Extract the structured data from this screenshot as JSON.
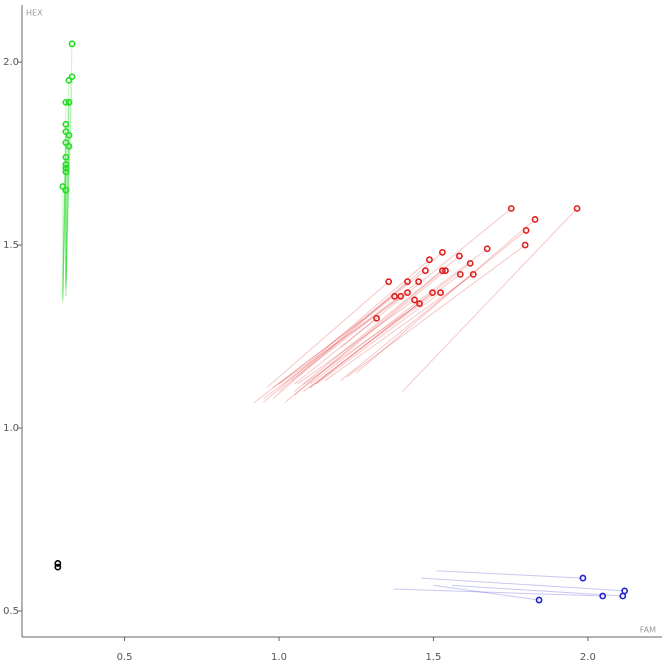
{
  "chart_data": {
    "type": "scatter-trails",
    "x_label": "FAM",
    "y_label": "HEX",
    "xlim": [
      0.168,
      2.24
    ],
    "ylim": [
      0.429,
      2.156
    ],
    "xticks": [
      0.5,
      {
        "value": 1,
        "label": "1.0"
      },
      1.5,
      {
        "value": 2,
        "label": "2.0"
      }
    ],
    "yticks": [
      0.5,
      {
        "value": 1,
        "label": "1.0"
      },
      1.5,
      {
        "value": 2,
        "label": "2.0"
      }
    ],
    "series": [
      {
        "color": "#22dd22",
        "x": [
          0.33,
          0.33,
          0.32,
          0.32,
          0.31,
          0.32,
          0.31,
          0.31,
          0.32,
          0.31,
          0.32,
          0.31,
          0.31,
          0.31,
          0.31,
          0.3,
          0.31
        ],
        "y": [
          2.05,
          1.96,
          1.95,
          1.89,
          1.89,
          1.89,
          1.83,
          1.81,
          1.8,
          1.78,
          1.77,
          1.74,
          1.72,
          1.71,
          1.7,
          1.66,
          1.65
        ],
        "trail_x": [
          0.31,
          0.31,
          0.3,
          0.31,
          0.3,
          0.31,
          0.3,
          0.31,
          0.31,
          0.3,
          0.31,
          0.3,
          0.31,
          0.3,
          0.31,
          0.3,
          0.31
        ],
        "trail_y": [
          1.36,
          1.38,
          1.34,
          1.4,
          1.35,
          1.42,
          1.37,
          1.39,
          1.36,
          1.41,
          1.38,
          1.35,
          1.4,
          1.37,
          1.39,
          1.36,
          1.41
        ]
      },
      {
        "color": "#e02020",
        "x": [
          1.752,
          1.965,
          1.829,
          1.8,
          1.529,
          1.487,
          1.674,
          1.584,
          1.619,
          1.797,
          1.474,
          1.452,
          1.355,
          1.416,
          1.539,
          1.529,
          1.629,
          1.587,
          1.416,
          1.374,
          1.394,
          1.439,
          1.455,
          1.497,
          1.523,
          1.316
        ],
        "y": [
          1.6,
          1.6,
          1.57,
          1.54,
          1.48,
          1.46,
          1.49,
          1.47,
          1.45,
          1.5,
          1.43,
          1.4,
          1.4,
          1.4,
          1.43,
          1.43,
          1.42,
          1.42,
          1.37,
          1.36,
          1.36,
          1.35,
          1.34,
          1.37,
          1.37,
          1.3
        ],
        "trail_x": [
          1.2,
          1.4,
          1.25,
          1.2,
          0.98,
          0.95,
          1.1,
          1.05,
          1.1,
          1.22,
          0.92,
          0.95,
          0.96,
          1.0,
          1.05,
          1.02,
          1.15,
          1.08,
          1.0,
          0.98,
          1.04,
          1.06,
          1.08,
          1.1,
          1.12,
          1.05
        ],
        "trail_y": [
          1.22,
          1.1,
          1.15,
          1.13,
          1.08,
          1.07,
          1.12,
          1.1,
          1.11,
          1.14,
          1.07,
          1.08,
          1.11,
          1.1,
          1.09,
          1.07,
          1.13,
          1.1,
          1.12,
          1.11,
          1.13,
          1.12,
          1.12,
          1.11,
          1.12,
          1.12
        ]
      },
      {
        "color": "#2222cc",
        "x": [
          1.984,
          2.119,
          2.113,
          2.048,
          1.842
        ],
        "y": [
          0.59,
          0.555,
          0.541,
          0.541,
          0.53
        ],
        "trail_x": [
          1.51,
          1.46,
          1.56,
          1.37,
          1.5
        ],
        "trail_y": [
          0.61,
          0.59,
          0.57,
          0.56,
          0.57
        ]
      },
      {
        "color": "#000000",
        "x": [
          0.284,
          0.284
        ],
        "y": [
          0.63,
          0.62
        ]
      }
    ]
  }
}
